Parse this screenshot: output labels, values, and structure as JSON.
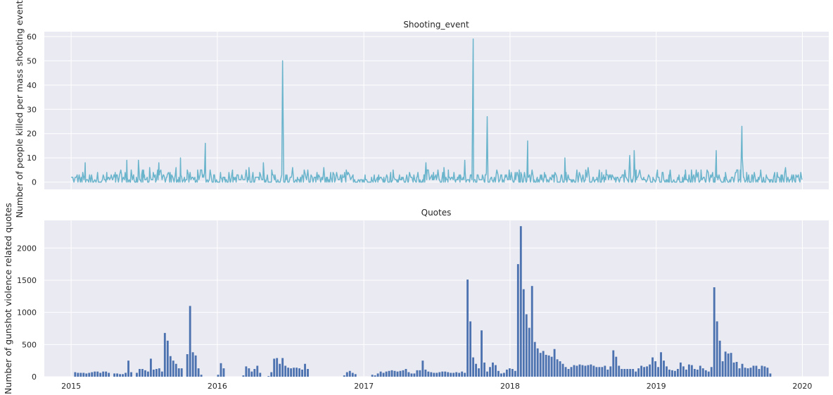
{
  "chart_data": [
    {
      "type": "line",
      "title": "Shooting_event",
      "xlabel": "",
      "ylabel": "Number of people killed per mass shooting event",
      "xlim": [
        "2014-10-26",
        "2020-03-07"
      ],
      "ylim": [
        -3,
        62
      ],
      "xticks": [
        "2015",
        "2016",
        "2017",
        "2018",
        "2019",
        "2020"
      ],
      "yticks": [
        0,
        10,
        20,
        30,
        40,
        50,
        60
      ],
      "grid": true,
      "series_color": "#6ab4cc",
      "baseline_range": [
        0,
        5
      ],
      "peaks": [
        {
          "date": "2015-02-05",
          "value": 8
        },
        {
          "date": "2015-05-20",
          "value": 9
        },
        {
          "date": "2015-06-18",
          "value": 9
        },
        {
          "date": "2015-07-16",
          "value": 6
        },
        {
          "date": "2015-08-08",
          "value": 8
        },
        {
          "date": "2015-09-20",
          "value": 6
        },
        {
          "date": "2015-10-01",
          "value": 10
        },
        {
          "date": "2015-11-20",
          "value": 5
        },
        {
          "date": "2015-12-02",
          "value": 16
        },
        {
          "date": "2016-03-20",
          "value": 6
        },
        {
          "date": "2016-04-25",
          "value": 8
        },
        {
          "date": "2016-06-12",
          "value": 50
        },
        {
          "date": "2016-07-07",
          "value": 6
        },
        {
          "date": "2016-09-23",
          "value": 6
        },
        {
          "date": "2017-03-15",
          "value": 5
        },
        {
          "date": "2017-06-05",
          "value": 8
        },
        {
          "date": "2017-07-20",
          "value": 6
        },
        {
          "date": "2017-09-10",
          "value": 9
        },
        {
          "date": "2017-10-01",
          "value": 59
        },
        {
          "date": "2017-11-05",
          "value": 27
        },
        {
          "date": "2018-02-14",
          "value": 17
        },
        {
          "date": "2018-02-25",
          "value": 5
        },
        {
          "date": "2018-05-18",
          "value": 10
        },
        {
          "date": "2018-07-15",
          "value": 6
        },
        {
          "date": "2018-10-27",
          "value": 11
        },
        {
          "date": "2018-11-07",
          "value": 13
        },
        {
          "date": "2019-03-15",
          "value": 5
        },
        {
          "date": "2019-05-31",
          "value": 13
        },
        {
          "date": "2019-07-30",
          "value": 5
        },
        {
          "date": "2019-08-03",
          "value": 23
        },
        {
          "date": "2019-08-04",
          "value": 10
        },
        {
          "date": "2019-11-20",
          "value": 6
        }
      ]
    },
    {
      "type": "bar",
      "title": "Quotes",
      "xlabel": "",
      "ylabel": "Number of gunshot violence related quotes",
      "xlim": [
        "2014-10-26",
        "2020-03-07"
      ],
      "ylim": [
        0,
        2430
      ],
      "xticks": [
        "2015",
        "2016",
        "2017",
        "2018",
        "2019",
        "2020"
      ],
      "yticks": [
        0,
        500,
        1000,
        1500,
        2000
      ],
      "grid": true,
      "bar_color": "#4c72b0",
      "bar_width_days": 5,
      "start_date": "2015-01-04",
      "interval_days": 7,
      "values": [
        0,
        70,
        60,
        60,
        60,
        50,
        60,
        70,
        80,
        80,
        60,
        80,
        80,
        60,
        0,
        50,
        50,
        40,
        40,
        60,
        250,
        70,
        0,
        60,
        120,
        120,
        100,
        80,
        280,
        110,
        120,
        130,
        80,
        680,
        560,
        320,
        250,
        200,
        130,
        130,
        0,
        350,
        1100,
        380,
        330,
        130,
        30,
        0,
        0,
        0,
        0,
        0,
        30,
        210,
        130,
        0,
        0,
        0,
        0,
        0,
        0,
        20,
        160,
        130,
        80,
        120,
        170,
        60,
        0,
        0,
        10,
        70,
        280,
        290,
        200,
        290,
        170,
        140,
        130,
        140,
        140,
        130,
        110,
        200,
        120,
        0,
        0,
        0,
        0,
        0,
        0,
        0,
        0,
        0,
        0,
        0,
        0,
        20,
        70,
        90,
        60,
        40,
        0,
        0,
        0,
        0,
        0,
        30,
        20,
        50,
        80,
        60,
        80,
        90,
        100,
        90,
        80,
        90,
        100,
        120,
        70,
        50,
        50,
        100,
        100,
        250,
        110,
        80,
        70,
        60,
        60,
        70,
        80,
        80,
        70,
        60,
        60,
        70,
        60,
        80,
        60,
        1510,
        860,
        300,
        200,
        130,
        720,
        220,
        80,
        150,
        220,
        180,
        90,
        50,
        60,
        110,
        130,
        120,
        90,
        1750,
        2340,
        1360,
        970,
        760,
        1410,
        540,
        440,
        370,
        400,
        340,
        330,
        310,
        430,
        270,
        240,
        200,
        150,
        120,
        150,
        180,
        170,
        190,
        180,
        170,
        180,
        190,
        170,
        150,
        150,
        150,
        170,
        110,
        160,
        410,
        310,
        170,
        120,
        120,
        120,
        120,
        120,
        80,
        130,
        170,
        150,
        160,
        190,
        300,
        240,
        150,
        380,
        250,
        160,
        110,
        100,
        90,
        120,
        220,
        160,
        110,
        190,
        180,
        120,
        110,
        170,
        130,
        100,
        80,
        150,
        1390,
        860,
        560,
        240,
        390,
        360,
        370,
        220,
        230,
        130,
        200,
        140,
        130,
        140,
        170,
        170,
        120,
        170,
        160,
        140,
        50
      ]
    }
  ]
}
